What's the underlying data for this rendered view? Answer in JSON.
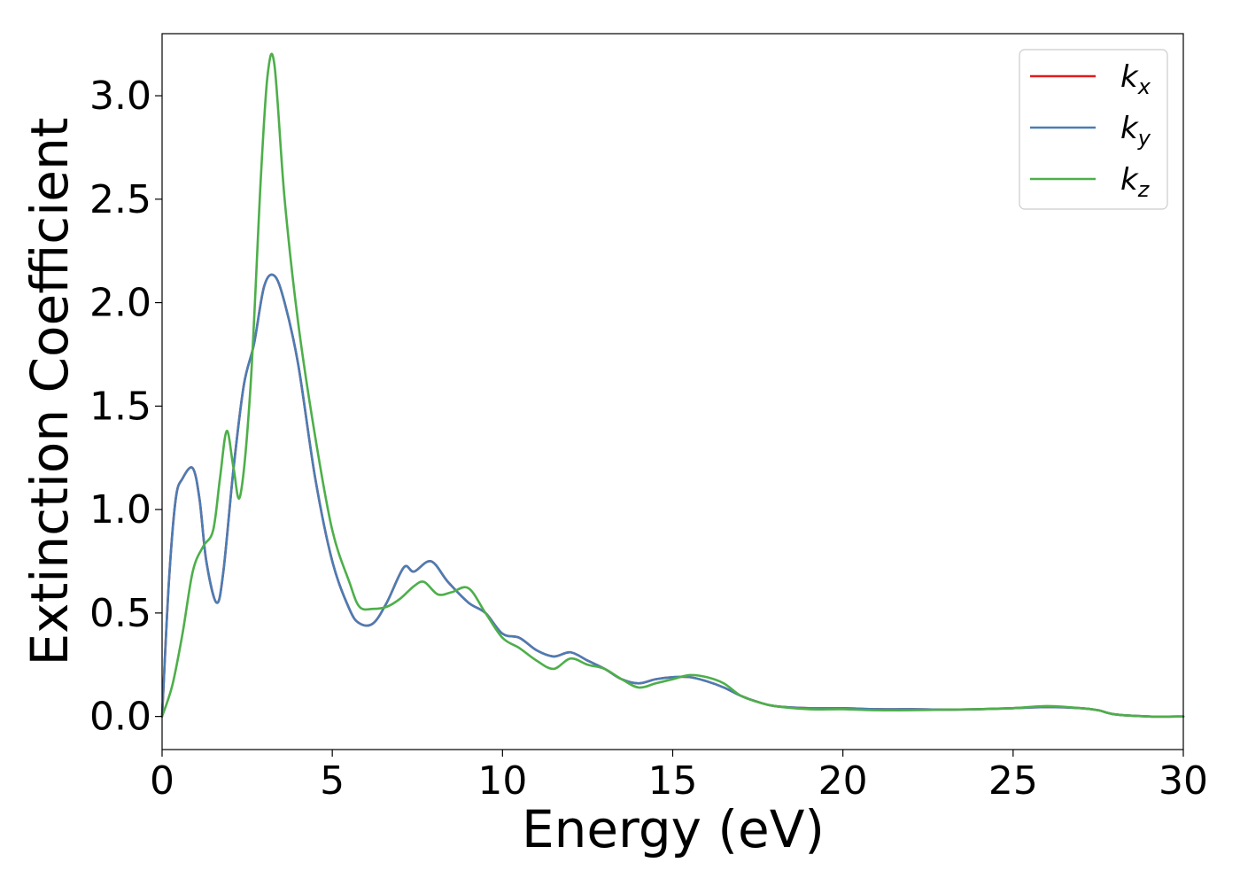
{
  "chart_data": {
    "type": "line",
    "title": "",
    "xlabel": "Energy (eV)",
    "ylabel": "Extinction Coefficient",
    "xlim": [
      0,
      30
    ],
    "ylim": [
      -0.16,
      3.3
    ],
    "xticks": [
      0,
      5,
      10,
      15,
      20,
      25,
      30
    ],
    "xtick_labels": [
      "0",
      "5",
      "10",
      "15",
      "20",
      "25",
      "30"
    ],
    "yticks": [
      0.0,
      0.5,
      1.0,
      1.5,
      2.0,
      2.5,
      3.0
    ],
    "ytick_labels": [
      "0.0",
      "0.5",
      "1.0",
      "1.5",
      "2.0",
      "2.5",
      "3.0"
    ],
    "grid": false,
    "legend_position": "top-right",
    "series": [
      {
        "name": "k",
        "subscript": "x",
        "color": "#e41a1c",
        "x": [
          0,
          0.2,
          0.4,
          0.6,
          0.9,
          1.1,
          1.3,
          1.6,
          1.8,
          2.1,
          2.4,
          2.7,
          3.0,
          3.3,
          3.6,
          4.0,
          4.5,
          5.0,
          5.5,
          5.8,
          6.2,
          6.6,
          7.1,
          7.4,
          7.9,
          8.4,
          9.0,
          9.5,
          10.0,
          10.5,
          11.0,
          11.5,
          12.0,
          12.5,
          13.0,
          13.5,
          14.0,
          14.5,
          15.0,
          15.5,
          16.0,
          16.5,
          17.0,
          17.5,
          18.0,
          19.0,
          20.0,
          21.0,
          22.0,
          23.0,
          24.0,
          25.0,
          26.0,
          27.0,
          27.5,
          28.0,
          29.0,
          30.0
        ],
        "y": [
          0.0,
          0.65,
          1.05,
          1.15,
          1.2,
          1.05,
          0.75,
          0.55,
          0.7,
          1.2,
          1.6,
          1.8,
          2.08,
          2.13,
          2.0,
          1.7,
          1.15,
          0.75,
          0.52,
          0.45,
          0.45,
          0.55,
          0.72,
          0.7,
          0.75,
          0.65,
          0.55,
          0.5,
          0.4,
          0.38,
          0.32,
          0.29,
          0.31,
          0.27,
          0.23,
          0.18,
          0.16,
          0.18,
          0.19,
          0.19,
          0.17,
          0.14,
          0.1,
          0.07,
          0.05,
          0.04,
          0.04,
          0.035,
          0.035,
          0.033,
          0.035,
          0.04,
          0.045,
          0.04,
          0.03,
          0.01,
          0.0,
          0.0
        ]
      },
      {
        "name": "k",
        "subscript": "y",
        "color": "#4a7db4",
        "x": [
          0,
          0.2,
          0.4,
          0.6,
          0.9,
          1.1,
          1.3,
          1.6,
          1.8,
          2.1,
          2.4,
          2.7,
          3.0,
          3.3,
          3.6,
          4.0,
          4.5,
          5.0,
          5.5,
          5.8,
          6.2,
          6.6,
          7.1,
          7.4,
          7.9,
          8.4,
          9.0,
          9.5,
          10.0,
          10.5,
          11.0,
          11.5,
          12.0,
          12.5,
          13.0,
          13.5,
          14.0,
          14.5,
          15.0,
          15.5,
          16.0,
          16.5,
          17.0,
          17.5,
          18.0,
          19.0,
          20.0,
          21.0,
          22.0,
          23.0,
          24.0,
          25.0,
          26.0,
          27.0,
          27.5,
          28.0,
          29.0,
          30.0
        ],
        "y": [
          0.0,
          0.65,
          1.05,
          1.15,
          1.2,
          1.05,
          0.75,
          0.55,
          0.7,
          1.2,
          1.6,
          1.8,
          2.08,
          2.13,
          2.0,
          1.7,
          1.15,
          0.75,
          0.52,
          0.45,
          0.45,
          0.55,
          0.72,
          0.7,
          0.75,
          0.65,
          0.55,
          0.5,
          0.4,
          0.38,
          0.32,
          0.29,
          0.31,
          0.27,
          0.23,
          0.18,
          0.16,
          0.18,
          0.19,
          0.19,
          0.17,
          0.14,
          0.1,
          0.07,
          0.05,
          0.04,
          0.04,
          0.035,
          0.035,
          0.033,
          0.035,
          0.04,
          0.045,
          0.04,
          0.03,
          0.01,
          0.0,
          0.0
        ]
      },
      {
        "name": "k",
        "subscript": "z",
        "color": "#4daf4a",
        "x": [
          0,
          0.3,
          0.6,
          0.9,
          1.2,
          1.5,
          1.7,
          1.9,
          2.1,
          2.3,
          2.6,
          2.9,
          3.1,
          3.3,
          3.6,
          4.0,
          4.5,
          5.0,
          5.5,
          5.8,
          6.2,
          6.6,
          7.0,
          7.4,
          7.7,
          8.1,
          8.5,
          9.0,
          9.5,
          10.0,
          10.5,
          11.0,
          11.5,
          12.0,
          12.5,
          13.0,
          13.5,
          14.0,
          14.5,
          15.0,
          15.5,
          16.0,
          16.5,
          17.0,
          17.5,
          18.0,
          19.0,
          20.0,
          21.0,
          22.0,
          23.0,
          24.0,
          25.0,
          26.0,
          27.0,
          27.5,
          28.0,
          29.0,
          30.0
        ],
        "y": [
          0.0,
          0.15,
          0.4,
          0.7,
          0.82,
          0.9,
          1.15,
          1.38,
          1.2,
          1.07,
          1.6,
          2.6,
          3.1,
          3.15,
          2.5,
          1.9,
          1.35,
          0.9,
          0.65,
          0.53,
          0.52,
          0.53,
          0.57,
          0.63,
          0.65,
          0.59,
          0.6,
          0.62,
          0.5,
          0.38,
          0.33,
          0.27,
          0.23,
          0.28,
          0.25,
          0.23,
          0.18,
          0.14,
          0.16,
          0.18,
          0.2,
          0.19,
          0.16,
          0.1,
          0.07,
          0.05,
          0.035,
          0.035,
          0.03,
          0.03,
          0.033,
          0.035,
          0.04,
          0.05,
          0.04,
          0.03,
          0.01,
          0.0,
          0.0
        ]
      }
    ]
  }
}
